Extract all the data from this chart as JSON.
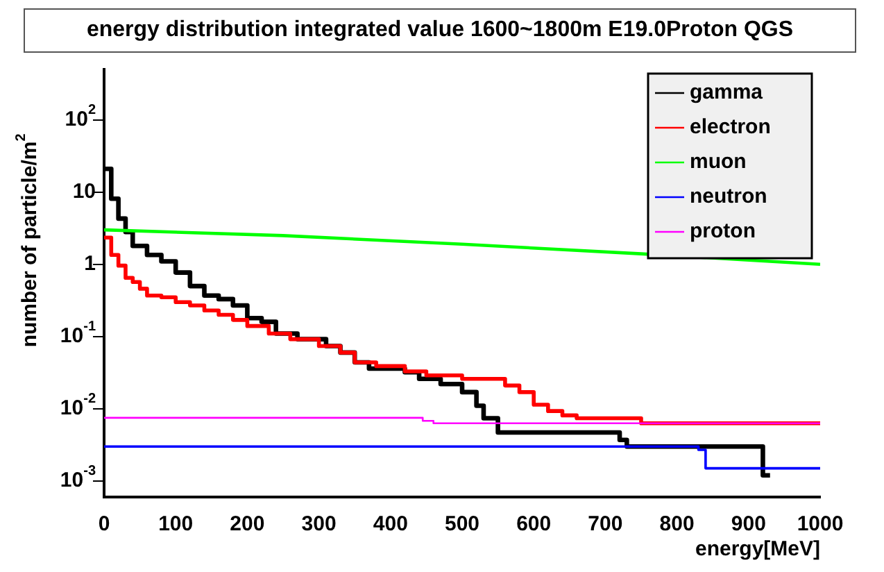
{
  "chart_data": {
    "type": "step",
    "title": "energy distribution integrated value 1600~1800m E19.0Proton QGS",
    "xlabel": "energy[MeV]",
    "ylabel": "number of particle/m$^{2}$",
    "log": "y",
    "grid": false,
    "legend": "top right",
    "xlim": [
      0,
      1000
    ],
    "xticks": [
      0,
      100,
      200,
      300,
      400,
      500,
      600,
      700,
      800,
      900,
      1000
    ],
    "ylim": [
      0.0006,
      500
    ],
    "yticks": [
      {
        "value": 0.001,
        "label": "10$^{-3}$"
      },
      {
        "value": 0.01,
        "label": "10$^{-2}$"
      },
      {
        "value": 0.1,
        "label": "10$^{-1}$"
      },
      1,
      10,
      {
        "value": 100,
        "label": "10$^{2}$"
      }
    ],
    "series": [
      {
        "name": "gamma",
        "color": "#000000",
        "x": [
          0,
          10,
          20,
          30,
          40,
          60,
          80,
          100,
          120,
          140,
          160,
          180,
          200,
          220,
          240,
          270,
          310,
          330,
          350,
          370,
          420,
          440,
          470,
          500,
          520,
          530,
          550,
          720,
          730,
          920,
          930
        ],
        "values": [
          21,
          8.1,
          4.3,
          2.8,
          1.8,
          1.35,
          1.1,
          0.77,
          0.5,
          0.37,
          0.33,
          0.27,
          0.18,
          0.16,
          0.11,
          0.092,
          0.074,
          0.06,
          0.044,
          0.036,
          0.032,
          0.026,
          0.022,
          0.017,
          0.011,
          0.0074,
          0.0047,
          0.0037,
          0.003,
          0.0012,
          0.0012
        ]
      },
      {
        "name": "electron",
        "color": "#ff0000",
        "x": [
          0,
          10,
          20,
          30,
          40,
          50,
          60,
          80,
          100,
          120,
          140,
          160,
          180,
          200,
          230,
          260,
          300,
          330,
          350,
          380,
          420,
          450,
          500,
          560,
          580,
          600,
          620,
          640,
          660,
          750,
          1000
        ],
        "values": [
          2.35,
          1.35,
          0.96,
          0.65,
          0.57,
          0.46,
          0.37,
          0.35,
          0.3,
          0.27,
          0.23,
          0.2,
          0.17,
          0.14,
          0.11,
          0.092,
          0.074,
          0.06,
          0.044,
          0.039,
          0.033,
          0.029,
          0.026,
          0.021,
          0.017,
          0.0114,
          0.0093,
          0.0081,
          0.0074,
          0.0063,
          0.0063
        ]
      },
      {
        "name": "muon",
        "color": "#00ff00",
        "type": "line",
        "x": [
          0,
          250,
          500,
          750,
          1000
        ],
        "values": [
          3.0,
          2.5,
          1.9,
          1.4,
          1.0
        ]
      },
      {
        "name": "neutron",
        "color": "#0000ff",
        "x": [
          0,
          830,
          840,
          1000
        ],
        "values": [
          0.003,
          0.0027,
          0.0015,
          0.0015
        ]
      },
      {
        "name": "proton",
        "color": "#ff00ff",
        "x": [
          0,
          445,
          460,
          1000
        ],
        "values": [
          0.0075,
          0.0068,
          0.0063,
          0.0063
        ]
      }
    ]
  }
}
